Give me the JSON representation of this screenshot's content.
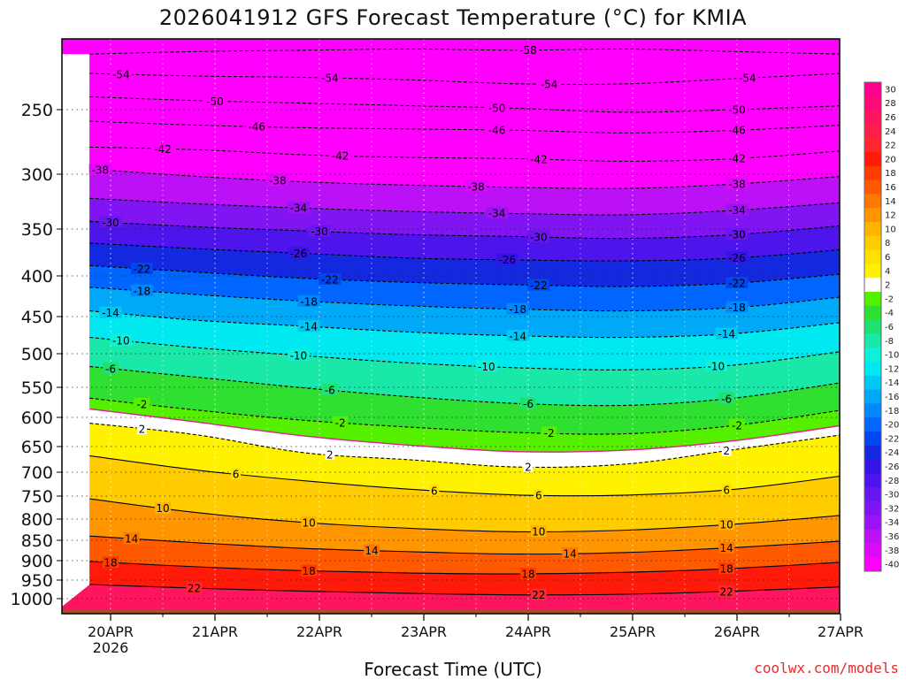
{
  "chart_data": {
    "type": "heatmap",
    "title": "2026041912 GFS Forecast Temperature (°C) for KMIA",
    "xlabel": "Forecast Time (UTC)",
    "credit": "coolwx.com/models",
    "x_ticks": [
      "20APR",
      "21APR",
      "22APR",
      "23APR",
      "24APR",
      "25APR",
      "26APR",
      "27APR"
    ],
    "x_year": "2026",
    "xlim": [
      -0.2,
      7.0
    ],
    "y_ticks": [
      250,
      300,
      350,
      400,
      450,
      500,
      550,
      600,
      650,
      700,
      750,
      800,
      850,
      900,
      950,
      1000
    ],
    "y_unit": "hPa",
    "ylim": [
      200,
      1040
    ],
    "legend_values": [
      30,
      28,
      26,
      24,
      22,
      20,
      18,
      16,
      14,
      12,
      10,
      8,
      6,
      4,
      2,
      -2,
      -4,
      -6,
      -8,
      -10,
      -12,
      -14,
      -16,
      -18,
      -20,
      -22,
      -24,
      -26,
      -28,
      -30,
      -32,
      -34,
      -36,
      -38,
      -40
    ],
    "legend_colors": [
      "#ff0090",
      "#ff0a78",
      "#ff1460",
      "#ff1e48",
      "#ff2830",
      "#ff1a0a",
      "#ff3c00",
      "#ff5a00",
      "#ff7800",
      "#ff9600",
      "#ffb400",
      "#ffcc00",
      "#ffe000",
      "#fff200",
      "#ffffff",
      "#55f000",
      "#30e030",
      "#20e070",
      "#1ae8a8",
      "#10f0d8",
      "#00e8f0",
      "#00c8f4",
      "#00a8f8",
      "#0088fc",
      "#0066ff",
      "#0046f0",
      "#1428e0",
      "#3414e6",
      "#4e14ec",
      "#6816f0",
      "#8014f2",
      "#9c12f4",
      "#bc10f6",
      "#dc0af8",
      "#ff00ff"
    ],
    "ground_color": "#a0522d",
    "levels": [
      {
        "value": -58,
        "label": "-58",
        "dashed": true,
        "p": [
          207,
          205,
          204,
          203,
          204,
          203,
          205,
          207
        ],
        "labels_at": [
          4.0
        ]
      },
      {
        "value": -54,
        "label": "-54",
        "dashed": true,
        "p": [
          222,
          224,
          225,
          227,
          230,
          230,
          226,
          222
        ],
        "labels_at": [
          0.1,
          2.1,
          4.2,
          6.1
        ]
      },
      {
        "value": -50,
        "label": "-50",
        "dashed": true,
        "p": [
          240,
          243,
          245,
          247,
          249,
          252,
          250,
          247
        ],
        "labels_at": [
          1.0,
          3.7,
          6.0
        ]
      },
      {
        "value": -46,
        "label": "-46",
        "dashed": true,
        "p": [
          259,
          262,
          264,
          265,
          266,
          268,
          266,
          262
        ],
        "labels_at": [
          1.4,
          3.7,
          6.0
        ]
      },
      {
        "value": -42,
        "label": "-42",
        "dashed": true,
        "p": [
          279,
          281,
          285,
          287,
          288,
          290,
          288,
          282
        ],
        "labels_at": [
          0.5,
          2.2,
          4.1,
          6.0
        ]
      },
      {
        "value": -38,
        "label": "-38",
        "dashed": true,
        "p": [
          296,
          302,
          307,
          310,
          312,
          313,
          309,
          302
        ],
        "labels_at": [
          -0.1,
          1.6,
          3.5,
          6.0
        ]
      },
      {
        "value": -34,
        "label": "-34",
        "dashed": true,
        "p": [
          322,
          327,
          331,
          334,
          336,
          337,
          333,
          326
        ],
        "labels_at": [
          1.8,
          3.7,
          6.0
        ]
      },
      {
        "value": -30,
        "label": "-30",
        "dashed": true,
        "p": [
          343,
          348,
          352,
          356,
          358,
          360,
          356,
          347
        ],
        "labels_at": [
          0.0,
          2.0,
          4.1,
          6.0
        ]
      },
      {
        "value": -26,
        "label": "-26",
        "dashed": true,
        "p": [
          365,
          371,
          376,
          381,
          383,
          384,
          381,
          372
        ],
        "labels_at": [
          1.8,
          3.8,
          6.0
        ]
      },
      {
        "value": -22,
        "label": "-22",
        "dashed": true,
        "p": [
          389,
          396,
          403,
          408,
          411,
          413,
          409,
          398
        ],
        "labels_at": [
          0.3,
          2.1,
          4.1,
          6.0
        ]
      },
      {
        "value": -18,
        "label": "-18",
        "dashed": true,
        "p": [
          414,
          423,
          431,
          437,
          441,
          443,
          439,
          426
        ],
        "labels_at": [
          0.3,
          1.9,
          3.9,
          6.0
        ]
      },
      {
        "value": -14,
        "label": "-14",
        "dashed": true,
        "p": [
          443,
          455,
          463,
          471,
          476,
          478,
          473,
          458
        ],
        "labels_at": [
          0.0,
          1.9,
          3.9,
          5.9
        ]
      },
      {
        "value": -10,
        "label": "-10",
        "dashed": true,
        "p": [
          478,
          492,
          503,
          514,
          521,
          524,
          517,
          497
        ],
        "labels_at": [
          0.1,
          1.8,
          3.6,
          5.8
        ]
      },
      {
        "value": -6,
        "label": "-6",
        "dashed": true,
        "p": [
          519,
          535,
          551,
          566,
          577,
          580,
          568,
          543
        ],
        "labels_at": [
          0.0,
          2.1,
          4.0,
          5.9
        ]
      },
      {
        "value": -2,
        "label": "-2",
        "dashed": true,
        "p": [
          568,
          588,
          605,
          617,
          626,
          628,
          614,
          588
        ],
        "labels_at": [
          0.3,
          2.2,
          4.2,
          6.0
        ]
      },
      {
        "value": 0,
        "label": "",
        "dashed": false,
        "color": "#e0208c",
        "p": [
          586,
          608,
          632,
          648,
          660,
          657,
          640,
          614
        ],
        "labels_at": []
      },
      {
        "value": 2,
        "label": "2",
        "dashed": true,
        "p": [
          610,
          630,
          662,
          676,
          690,
          684,
          656,
          630
        ],
        "labels_at": [
          0.3,
          2.1,
          4.0,
          5.9
        ]
      },
      {
        "value": 6,
        "label": "6",
        "dashed": false,
        "p": [
          668,
          696,
          718,
          736,
          748,
          748,
          736,
          708
        ],
        "labels_at": [
          1.2,
          3.1,
          4.1,
          5.9
        ]
      },
      {
        "value": 10,
        "label": "10",
        "dashed": false,
        "p": [
          756,
          786,
          808,
          822,
          830,
          826,
          812,
          792
        ],
        "labels_at": [
          0.5,
          1.9,
          4.1,
          5.9
        ]
      },
      {
        "value": 14,
        "label": "14",
        "dashed": false,
        "p": [
          840,
          856,
          870,
          878,
          884,
          880,
          868,
          852
        ],
        "labels_at": [
          0.2,
          2.5,
          4.4,
          5.9
        ]
      },
      {
        "value": 18,
        "label": "18",
        "dashed": false,
        "p": [
          902,
          916,
          926,
          932,
          934,
          930,
          920,
          904
        ],
        "labels_at": [
          0.0,
          1.9,
          4.0,
          5.9
        ]
      },
      {
        "value": 22,
        "label": "22",
        "dashed": false,
        "p": [
          962,
          972,
          980,
          986,
          990,
          988,
          980,
          968
        ],
        "labels_at": [
          0.8,
          4.1,
          5.9
        ]
      }
    ]
  }
}
